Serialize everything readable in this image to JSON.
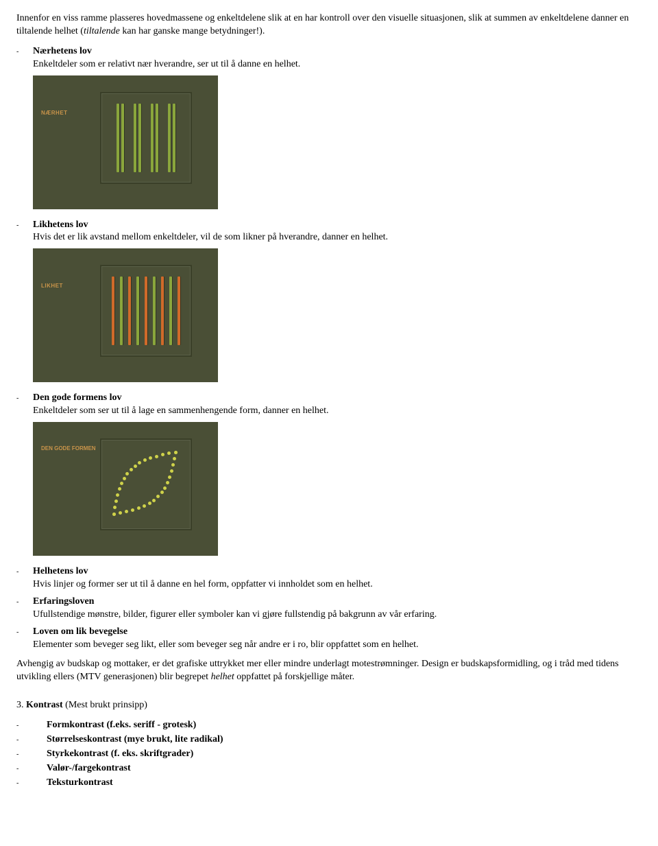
{
  "intro": "Innenfor en viss ramme plasseres hovedmassene og enkeltdelene slik at en har kontroll over den visuelle situasjonen, slik at summen av enkeltdelene danner en tiltalende helhet (tiltalende kan har ganske mange betydninger!).",
  "laws": [
    {
      "title": "Nærhetens lov",
      "desc": "Enkeltdeler som er relativt nær hverandre, ser ut til å danne en helhet."
    },
    {
      "title": "Likhetens lov",
      "desc": "Hvis det er lik avstand mellom enkeltdeler, vil de som likner på hverandre, danner en helhet."
    },
    {
      "title": "Den gode formens lov",
      "desc": "Enkeltdeler som ser ut til å lage en sammenhengende form, danner en helhet."
    },
    {
      "title": "Helhetens lov",
      "desc": "Hvis linjer og former ser ut til å danne en hel form, oppfatter vi innholdet som en helhet."
    },
    {
      "title": "Erfaringsloven",
      "desc": "Ufullstendige mønstre, bilder, figurer eller symboler kan vi gjøre fullstendig på bakgrunn av vår erfaring."
    },
    {
      "title": "Loven om lik bevegelse",
      "desc": "Elementer som beveger seg likt, eller som beveger seg når andre er i ro, blir oppfattet som en helhet."
    }
  ],
  "fig1": {
    "label": "NÆRHET",
    "bg": "#4a4f36",
    "bar_color": "#8aa63c",
    "pairs": 4
  },
  "fig2": {
    "label": "LIKHET",
    "bg": "#4a4f36",
    "colors": [
      "#d06a2a",
      "#8aa63c",
      "#d06a2a",
      "#8aa63c",
      "#d06a2a",
      "#8aa63c",
      "#d06a2a",
      "#8aa63c",
      "#d06a2a"
    ]
  },
  "fig3": {
    "label": "DEN GODE FORMEN",
    "bg": "#4a4f36",
    "dot_color": "#cfd24a"
  },
  "closing": "Avhengig av budskap og mottaker, er det grafiske uttrykket mer eller mindre underlagt motestrømninger. Design er budskapsformidling, og i tråd med tidens utvikling ellers (MTV generasjonen) blir begrepet helhet oppfattet på forskjellige måter.",
  "section3_heading": "3. Kontrast (Mest brukt prinsipp)",
  "contrasts": [
    "Formkontrast (f.eks. seriff - grotesk)",
    "Størrelseskontrast (mye brukt, lite radikal)",
    "Styrkekontrast (f. eks. skriftgrader)",
    "Valør-/fargekontrast",
    "Teksturkontrast"
  ]
}
